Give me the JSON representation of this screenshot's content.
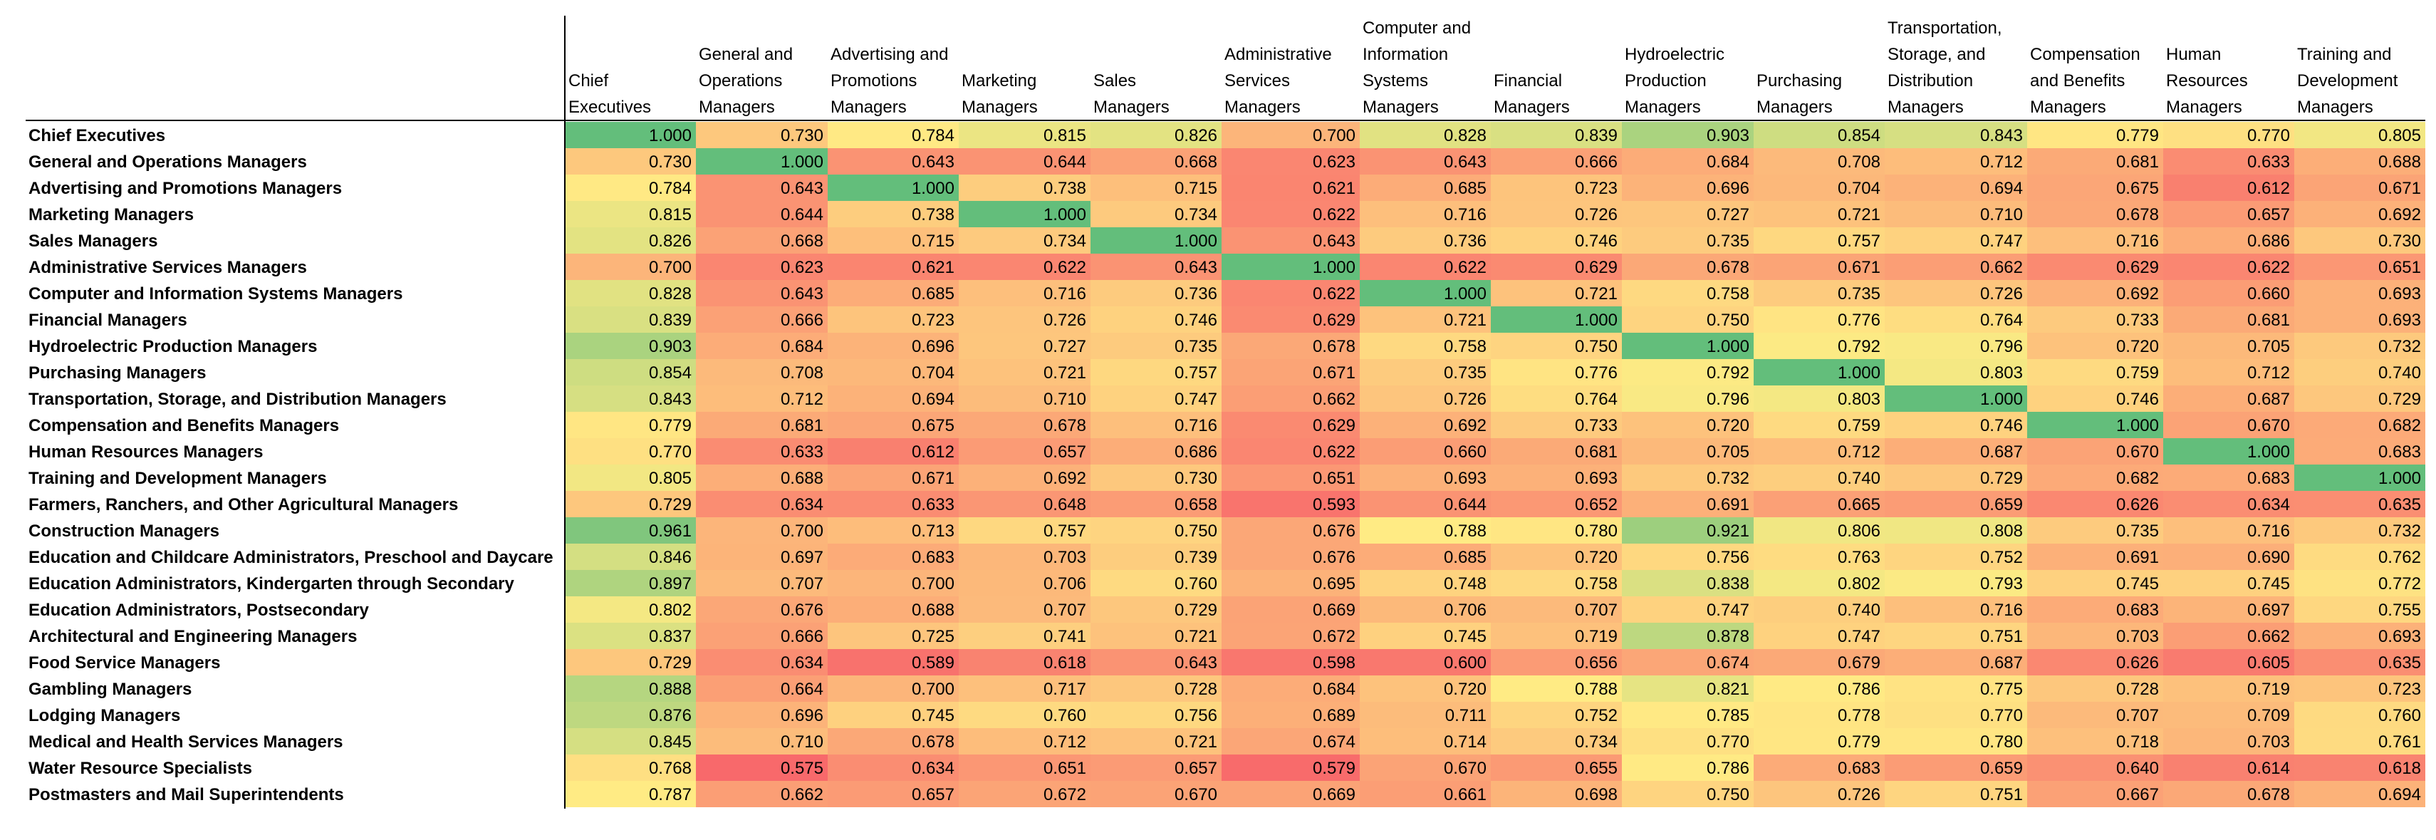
{
  "chart_data": {
    "type": "heatmap",
    "title": "",
    "colors": {
      "low": "#f8696b",
      "mid": "#ffeb84",
      "high": "#63be7b"
    },
    "columns": [
      [
        "Chief",
        "Executives"
      ],
      [
        "General and",
        "Operations",
        "Managers"
      ],
      [
        "Advertising and",
        "Promotions",
        "Managers"
      ],
      [
        "Marketing",
        "Managers"
      ],
      [
        "Sales",
        "Managers"
      ],
      [
        "Administrative",
        "Services",
        "Managers"
      ],
      [
        "Computer and",
        "Information",
        "Systems",
        "Managers"
      ],
      [
        "Financial",
        "Managers"
      ],
      [
        "Hydroelectric",
        "Production",
        "Managers"
      ],
      [
        "Purchasing",
        "Managers"
      ],
      [
        "Transportation,",
        "Storage, and",
        "Distribution",
        "Managers"
      ],
      [
        "Compensation",
        "and Benefits",
        "Managers"
      ],
      [
        "Human",
        "Resources",
        "Managers"
      ],
      [
        "Training and",
        "Development",
        "Managers"
      ]
    ],
    "rows": [
      "Chief Executives",
      "General and Operations Managers",
      "Advertising and Promotions Managers",
      "Marketing Managers",
      "Sales Managers",
      "Administrative Services Managers",
      "Computer and Information Systems Managers",
      "Financial Managers",
      "Hydroelectric Production Managers",
      "Purchasing Managers",
      "Transportation, Storage, and Distribution Managers",
      "Compensation and Benefits Managers",
      "Human Resources Managers",
      "Training and Development Managers",
      "Farmers, Ranchers, and Other Agricultural Managers",
      "Construction Managers",
      "Education and Childcare Administrators, Preschool and Daycare",
      "Education Administrators, Kindergarten through Secondary",
      "Education Administrators, Postsecondary",
      "Architectural and Engineering Managers",
      "Food Service Managers",
      "Gambling Managers",
      "Lodging Managers",
      "Medical and Health Services Managers",
      "Water Resource Specialists",
      "Postmasters and Mail Superintendents"
    ],
    "values": [
      [
        "1.000",
        "0.730",
        "0.784",
        "0.815",
        "0.826",
        "0.700",
        "0.828",
        "0.839",
        "0.903",
        "0.854",
        "0.843",
        "0.779",
        "0.770",
        "0.805"
      ],
      [
        "0.730",
        "1.000",
        "0.643",
        "0.644",
        "0.668",
        "0.623",
        "0.643",
        "0.666",
        "0.684",
        "0.708",
        "0.712",
        "0.681",
        "0.633",
        "0.688"
      ],
      [
        "0.784",
        "0.643",
        "1.000",
        "0.738",
        "0.715",
        "0.621",
        "0.685",
        "0.723",
        "0.696",
        "0.704",
        "0.694",
        "0.675",
        "0.612",
        "0.671"
      ],
      [
        "0.815",
        "0.644",
        "0.738",
        "1.000",
        "0.734",
        "0.622",
        "0.716",
        "0.726",
        "0.727",
        "0.721",
        "0.710",
        "0.678",
        "0.657",
        "0.692"
      ],
      [
        "0.826",
        "0.668",
        "0.715",
        "0.734",
        "1.000",
        "0.643",
        "0.736",
        "0.746",
        "0.735",
        "0.757",
        "0.747",
        "0.716",
        "0.686",
        "0.730"
      ],
      [
        "0.700",
        "0.623",
        "0.621",
        "0.622",
        "0.643",
        "1.000",
        "0.622",
        "0.629",
        "0.678",
        "0.671",
        "0.662",
        "0.629",
        "0.622",
        "0.651"
      ],
      [
        "0.828",
        "0.643",
        "0.685",
        "0.716",
        "0.736",
        "0.622",
        "1.000",
        "0.721",
        "0.758",
        "0.735",
        "0.726",
        "0.692",
        "0.660",
        "0.693"
      ],
      [
        "0.839",
        "0.666",
        "0.723",
        "0.726",
        "0.746",
        "0.629",
        "0.721",
        "1.000",
        "0.750",
        "0.776",
        "0.764",
        "0.733",
        "0.681",
        "0.693"
      ],
      [
        "0.903",
        "0.684",
        "0.696",
        "0.727",
        "0.735",
        "0.678",
        "0.758",
        "0.750",
        "1.000",
        "0.792",
        "0.796",
        "0.720",
        "0.705",
        "0.732"
      ],
      [
        "0.854",
        "0.708",
        "0.704",
        "0.721",
        "0.757",
        "0.671",
        "0.735",
        "0.776",
        "0.792",
        "1.000",
        "0.803",
        "0.759",
        "0.712",
        "0.740"
      ],
      [
        "0.843",
        "0.712",
        "0.694",
        "0.710",
        "0.747",
        "0.662",
        "0.726",
        "0.764",
        "0.796",
        "0.803",
        "1.000",
        "0.746",
        "0.687",
        "0.729"
      ],
      [
        "0.779",
        "0.681",
        "0.675",
        "0.678",
        "0.716",
        "0.629",
        "0.692",
        "0.733",
        "0.720",
        "0.759",
        "0.746",
        "1.000",
        "0.670",
        "0.682"
      ],
      [
        "0.770",
        "0.633",
        "0.612",
        "0.657",
        "0.686",
        "0.622",
        "0.660",
        "0.681",
        "0.705",
        "0.712",
        "0.687",
        "0.670",
        "1.000",
        "0.683"
      ],
      [
        "0.805",
        "0.688",
        "0.671",
        "0.692",
        "0.730",
        "0.651",
        "0.693",
        "0.693",
        "0.732",
        "0.740",
        "0.729",
        "0.682",
        "0.683",
        "1.000"
      ],
      [
        "0.729",
        "0.634",
        "0.633",
        "0.648",
        "0.658",
        "0.593",
        "0.644",
        "0.652",
        "0.691",
        "0.665",
        "0.659",
        "0.626",
        "0.634",
        "0.635"
      ],
      [
        "0.961",
        "0.700",
        "0.713",
        "0.757",
        "0.750",
        "0.676",
        "0.788",
        "0.780",
        "0.921",
        "0.806",
        "0.808",
        "0.735",
        "0.716",
        "0.732"
      ],
      [
        "0.846",
        "0.697",
        "0.683",
        "0.703",
        "0.739",
        "0.676",
        "0.685",
        "0.720",
        "0.756",
        "0.763",
        "0.752",
        "0.691",
        "0.690",
        "0.762"
      ],
      [
        "0.897",
        "0.707",
        "0.700",
        "0.706",
        "0.760",
        "0.695",
        "0.748",
        "0.758",
        "0.838",
        "0.802",
        "0.793",
        "0.745",
        "0.745",
        "0.772"
      ],
      [
        "0.802",
        "0.676",
        "0.688",
        "0.707",
        "0.729",
        "0.669",
        "0.706",
        "0.707",
        "0.747",
        "0.740",
        "0.716",
        "0.683",
        "0.697",
        "0.755"
      ],
      [
        "0.837",
        "0.666",
        "0.725",
        "0.741",
        "0.721",
        "0.672",
        "0.745",
        "0.719",
        "0.878",
        "0.747",
        "0.751",
        "0.703",
        "0.662",
        "0.693"
      ],
      [
        "0.729",
        "0.634",
        "0.589",
        "0.618",
        "0.643",
        "0.598",
        "0.600",
        "0.656",
        "0.674",
        "0.679",
        "0.687",
        "0.626",
        "0.605",
        "0.635"
      ],
      [
        "0.888",
        "0.664",
        "0.700",
        "0.717",
        "0.728",
        "0.684",
        "0.720",
        "0.788",
        "0.821",
        "0.786",
        "0.775",
        "0.728",
        "0.719",
        "0.723"
      ],
      [
        "0.876",
        "0.696",
        "0.745",
        "0.760",
        "0.756",
        "0.689",
        "0.711",
        "0.752",
        "0.785",
        "0.778",
        "0.770",
        "0.707",
        "0.709",
        "0.760"
      ],
      [
        "0.845",
        "0.710",
        "0.678",
        "0.712",
        "0.721",
        "0.674",
        "0.714",
        "0.734",
        "0.770",
        "0.779",
        "0.780",
        "0.718",
        "0.703",
        "0.761"
      ],
      [
        "0.768",
        "0.575",
        "0.634",
        "0.651",
        "0.657",
        "0.579",
        "0.670",
        "0.655",
        "0.786",
        "0.683",
        "0.659",
        "0.640",
        "0.614",
        "0.618"
      ],
      [
        "0.787",
        "0.662",
        "0.657",
        "0.672",
        "0.670",
        "0.669",
        "0.661",
        "0.698",
        "0.750",
        "0.726",
        "0.751",
        "0.667",
        "0.678",
        "0.694"
      ]
    ]
  }
}
